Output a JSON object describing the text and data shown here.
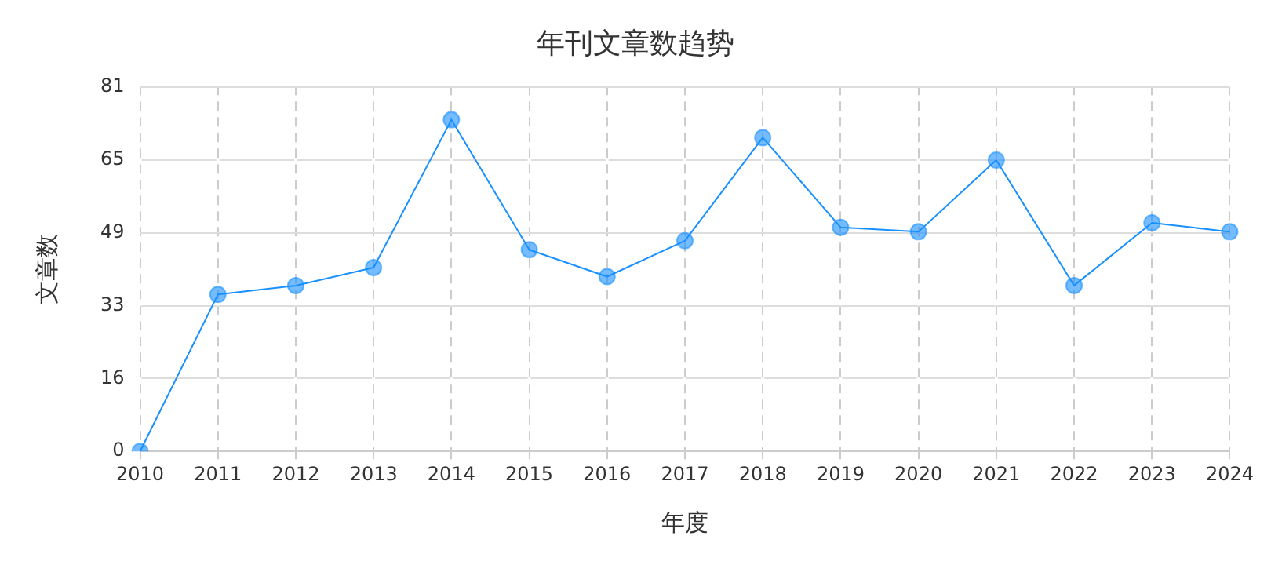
{
  "chart_data": {
    "type": "line",
    "title": "年刊文章数趋势",
    "xlabel": "年度",
    "ylabel": "文章数",
    "categories": [
      "2010",
      "2011",
      "2012",
      "2013",
      "2014",
      "2015",
      "2016",
      "2017",
      "2018",
      "2019",
      "2020",
      "2021",
      "2022",
      "2023",
      "2024"
    ],
    "series": [
      {
        "color": "#1890ff",
        "values": [
          0,
          35,
          37,
          41,
          74,
          45,
          39,
          47,
          70,
          50,
          49,
          65,
          37,
          51,
          49
        ]
      }
    ],
    "ylim": [
      0,
      81.25
    ],
    "yticks": [
      0,
      {
        "value": 16.25,
        "label": "16"
      },
      {
        "value": 32.5,
        "label": "33"
      },
      {
        "value": 48.75,
        "label": "49"
      },
      65,
      {
        "value": 81.25,
        "label": "81"
      }
    ],
    "grid": true,
    "marker": "circle",
    "line_style": "solid"
  }
}
